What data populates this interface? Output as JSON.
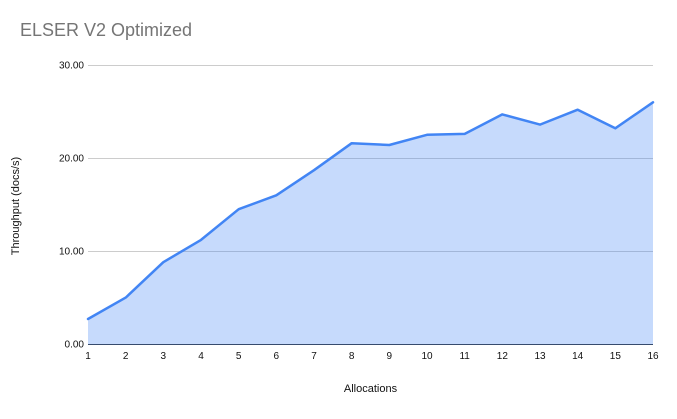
{
  "chart_data": {
    "type": "area",
    "title": "ELSER V2 Optimized",
    "xlabel": "Allocations",
    "ylabel": "Throughput (docs/s)",
    "x": [
      1,
      2,
      3,
      4,
      5,
      6,
      7,
      8,
      9,
      10,
      11,
      12,
      13,
      14,
      15,
      16
    ],
    "values": [
      2.8,
      5.1,
      8.9,
      11.3,
      14.6,
      16.1,
      18.8,
      21.7,
      21.5,
      22.6,
      22.7,
      24.8,
      23.7,
      25.3,
      23.3,
      26.1
    ],
    "ylim": [
      0,
      30
    ],
    "yticks": [
      "0.00",
      "10.00",
      "20.00",
      "30.00"
    ],
    "grid": true,
    "legend_position": "none",
    "colors": {
      "line": "#4285f4",
      "fill": "rgba(66,133,244,0.3)",
      "gridline": "#cccccc",
      "axis_line": "#333333",
      "title_text": "#757575",
      "axis_text": "#111111"
    }
  }
}
